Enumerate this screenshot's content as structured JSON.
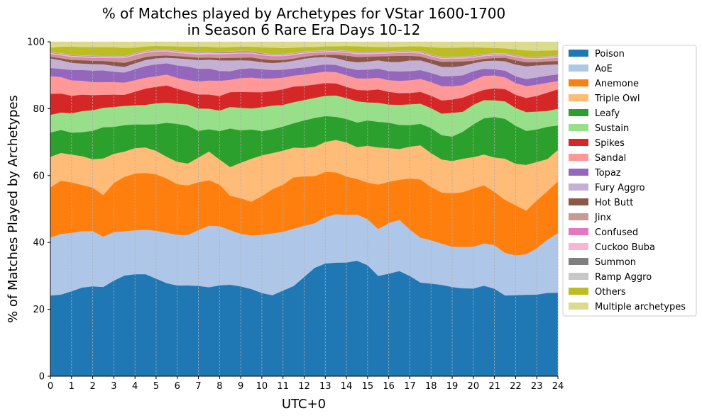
{
  "chart_data": {
    "type": "area",
    "stacked": true,
    "title_line1": "% of Matches played by Archetypes for VStar 1600-1700",
    "title_line2": "in Season 6 Rare Era Days 10-12",
    "xlabel": "UTC+0",
    "ylabel": "% of Matches Played by Archetypes",
    "xlim": [
      0,
      24
    ],
    "ylim": [
      0,
      100
    ],
    "xticks": [
      0,
      1,
      2,
      3,
      4,
      5,
      6,
      7,
      8,
      9,
      10,
      11,
      12,
      13,
      14,
      15,
      16,
      17,
      18,
      19,
      20,
      21,
      22,
      23,
      24
    ],
    "xtick_labels": [
      "0",
      "1",
      "2",
      "3",
      "4",
      "5",
      "6",
      "7",
      "8",
      "9",
      "10",
      "11",
      "12",
      "13",
      "14",
      "15",
      "16",
      "17",
      "18",
      "19",
      "20",
      "21",
      "22",
      "23",
      "24"
    ],
    "yticks": [
      0,
      20,
      40,
      60,
      80,
      100
    ],
    "ytick_labels": [
      "0",
      "20",
      "40",
      "60",
      "80",
      "100"
    ],
    "grid": "vertical-dashed",
    "legend_position": "right",
    "x": [
      0,
      0.5,
      1,
      1.5,
      2,
      2.5,
      3,
      3.5,
      4,
      4.5,
      5,
      5.5,
      6,
      6.5,
      7,
      7.5,
      8,
      8.5,
      9,
      9.5,
      10,
      10.5,
      11,
      11.5,
      12,
      12.5,
      13,
      13.5,
      14,
      14.5,
      15,
      15.5,
      16,
      16.5,
      17,
      17.5,
      18,
      18.5,
      19,
      19.5,
      20,
      20.5,
      21,
      21.5,
      22,
      22.5,
      23,
      23.5,
      24
    ],
    "series": [
      {
        "name": "Poison",
        "color": "#1f77b4",
        "values": [
          25.0,
          25.3,
          26.3,
          27.4,
          27.5,
          27.5,
          28.8,
          30.2,
          30.9,
          31.6,
          30.8,
          29.9,
          29.2,
          28.6,
          27.8,
          27.2,
          27.5,
          28.0,
          27.8,
          27.4,
          26.1,
          25.3,
          26.4,
          27.8,
          30.7,
          33.5,
          34.5,
          35.0,
          35.4,
          35.8,
          34.3,
          31.0,
          31.6,
          32.4,
          30.8,
          28.8,
          28.4,
          27.9,
          27.4,
          26.8,
          27.5,
          28.3,
          27.1,
          25.8,
          25.4,
          24.7,
          24.6,
          25.1,
          25.0
        ]
      },
      {
        "name": "AoE",
        "color": "#aec7e8",
        "values": [
          18.0,
          18.8,
          18.1,
          17.4,
          16.9,
          15.5,
          14.6,
          13.3,
          13.3,
          13.8,
          15.1,
          16.2,
          16.3,
          15.9,
          17.2,
          18.8,
          17.9,
          16.7,
          16.3,
          16.8,
          18.3,
          19.3,
          18.1,
          17.7,
          15.8,
          13.8,
          14.2,
          14.9,
          14.8,
          14.3,
          14.2,
          14.5,
          15.6,
          15.8,
          14.3,
          13.8,
          13.3,
          12.6,
          12.4,
          12.6,
          13.1,
          13.2,
          13.5,
          13.6,
          12.5,
          12.3,
          14.0,
          16.0,
          17.8
        ]
      },
      {
        "name": "Anemone",
        "color": "#ff7f0e",
        "values": [
          15.5,
          16.5,
          15.6,
          14.3,
          13.3,
          12.8,
          14.8,
          16.3,
          17.2,
          17.6,
          17.8,
          17.4,
          16.3,
          15.6,
          14.7,
          13.9,
          12.6,
          10.5,
          11.0,
          10.6,
          12.1,
          13.8,
          14.5,
          15.8,
          15.3,
          14.5,
          13.8,
          12.9,
          12.0,
          11.0,
          11.3,
          13.7,
          12.7,
          12.3,
          15.7,
          17.9,
          16.3,
          15.6,
          16.4,
          16.7,
          18.2,
          18.2,
          16.5,
          16.9,
          15.7,
          13.2,
          14.4,
          14.6,
          15.5
        ]
      },
      {
        "name": "Triple Owl",
        "color": "#ffbb78",
        "values": [
          9.5,
          8.6,
          8.6,
          8.9,
          8.7,
          11.3,
          8.8,
          7.6,
          7.7,
          7.9,
          7.4,
          7.0,
          7.2,
          6.9,
          7.6,
          8.8,
          7.6,
          8.8,
          11.0,
          13.5,
          12.8,
          11.3,
          10.5,
          9.2,
          8.8,
          9.1,
          9.2,
          10.0,
          10.6,
          9.9,
          11.4,
          11.5,
          10.4,
          9.5,
          9.8,
          10.5,
          10.4,
          10.1,
          9.9,
          10.2,
          9.9,
          9.6,
          10.7,
          13.2,
          13.0,
          13.9,
          11.6,
          9.7,
          9.4
        ]
      },
      {
        "name": "Leafy",
        "color": "#2ca02c",
        "values": [
          7.5,
          7.1,
          6.8,
          7.4,
          8.7,
          9.6,
          8.1,
          7.9,
          7.2,
          7.1,
          8.4,
          10.9,
          12.2,
          11.9,
          8.2,
          6.8,
          8.6,
          11.8,
          10.0,
          9.2,
          7.6,
          7.4,
          7.4,
          7.5,
          8.5,
          8.9,
          7.9,
          7.1,
          7.3,
          7.6,
          7.8,
          7.9,
          7.8,
          7.4,
          6.6,
          6.6,
          7.7,
          7.4,
          7.5,
          8.2,
          10.2,
          11.3,
          12.5,
          12.7,
          11.9,
          10.3,
          9.8,
          9.7,
          7.3
        ]
      },
      {
        "name": "Sustain",
        "color": "#98df8a",
        "values": [
          5.5,
          5.4,
          6.0,
          6.5,
          6.3,
          6.0,
          6.0,
          5.8,
          5.8,
          6.1,
          6.6,
          6.5,
          6.5,
          6.7,
          6.9,
          6.3,
          6.2,
          6.6,
          7.0,
          6.6,
          7.5,
          7.4,
          6.7,
          6.5,
          6.3,
          6.2,
          6.2,
          6.6,
          6.5,
          6.6,
          5.6,
          5.9,
          5.6,
          6.2,
          6.4,
          6.2,
          6.1,
          6.6,
          7.3,
          6.1,
          6.2,
          5.7,
          5.2,
          5.6,
          5.6,
          5.7,
          5.4,
          4.8,
          5.0
        ]
      },
      {
        "name": "Spikes",
        "color": "#d62728",
        "values": [
          6.5,
          5.9,
          5.4,
          5.1,
          4.6,
          4.0,
          3.7,
          3.3,
          4.1,
          5.0,
          5.2,
          5.5,
          4.8,
          4.0,
          4.3,
          4.3,
          4.4,
          4.5,
          4.9,
          5.1,
          4.7,
          4.5,
          4.8,
          4.8,
          4.4,
          4.1,
          3.9,
          3.7,
          3.5,
          3.5,
          3.7,
          4.1,
          3.9,
          3.6,
          3.5,
          3.6,
          3.8,
          4.0,
          4.1,
          4.3,
          3.5,
          3.2,
          3.7,
          3.9,
          4.1,
          4.3,
          4.7,
          5.5,
          5.8
        ]
      },
      {
        "name": "Sandal",
        "color": "#ff9896",
        "values": [
          5.5,
          5.1,
          4.8,
          4.3,
          4.0,
          3.9,
          3.8,
          3.7,
          3.5,
          3.4,
          3.4,
          3.5,
          3.5,
          3.7,
          4.0,
          4.3,
          4.6,
          3.8,
          4.3,
          4.6,
          4.3,
          4.0,
          3.6,
          3.4,
          3.5,
          3.6,
          3.5,
          3.5,
          3.6,
          3.6,
          3.7,
          3.6,
          3.6,
          3.8,
          3.9,
          4.0,
          4.2,
          4.4,
          4.1,
          3.8,
          4.2,
          4.4,
          4.0,
          3.8,
          3.7,
          3.6,
          3.4,
          3.0,
          2.5
        ]
      },
      {
        "name": "Topaz",
        "color": "#9467bd",
        "values": [
          2.5,
          2.5,
          3.2,
          3.3,
          3.5,
          3.6,
          3.1,
          3.0,
          3.3,
          3.6,
          3.7,
          3.6,
          4.0,
          4.2,
          3.9,
          3.6,
          3.0,
          2.6,
          2.8,
          2.9,
          2.9,
          2.6,
          2.4,
          2.2,
          2.2,
          2.2,
          2.2,
          2.2,
          2.3,
          2.6,
          2.7,
          2.8,
          2.8,
          2.9,
          2.8,
          2.7,
          2.8,
          3.0,
          3.1,
          3.0,
          2.8,
          2.2,
          1.9,
          2.1,
          2.1,
          2.1,
          2.2,
          2.1,
          2.0
        ]
      },
      {
        "name": "Fury Aggro",
        "color": "#c5b0d5",
        "values": [
          3.0,
          2.7,
          2.2,
          2.0,
          2.0,
          1.9,
          1.8,
          1.7,
          1.8,
          1.9,
          1.9,
          1.8,
          2.3,
          2.4,
          2.7,
          2.8,
          3.2,
          3.3,
          2.7,
          2.4,
          2.2,
          2.2,
          2.3,
          2.4,
          2.7,
          2.6,
          2.3,
          2.1,
          2.2,
          2.4,
          2.5,
          2.6,
          2.8,
          2.9,
          3.3,
          3.0,
          2.9,
          2.9,
          2.8,
          2.9,
          2.5,
          2.4,
          2.7,
          3.0,
          3.7,
          3.9,
          3.6,
          3.3,
          3.0
        ]
      },
      {
        "name": "Hot Butt",
        "color": "#8c564b",
        "values": [
          0.5,
          0.6,
          0.9,
          1.0,
          1.0,
          1.0,
          1.2,
          1.2,
          1.0,
          0.9,
          0.8,
          0.7,
          0.7,
          0.7,
          0.7,
          0.6,
          0.7,
          0.8,
          0.8,
          1.0,
          1.0,
          0.9,
          0.7,
          0.6,
          0.6,
          0.6,
          0.6,
          1.0,
          1.6,
          1.6,
          1.5,
          1.2,
          1.8,
          1.9,
          1.4,
          1.2,
          1.2,
          1.5,
          1.6,
          1.3,
          0.8,
          0.7,
          0.8,
          1.1,
          1.3,
          1.2,
          1.0,
          1.0,
          1.0
        ]
      },
      {
        "name": "Jinx",
        "color": "#c49c94",
        "values": [
          0.5,
          0.6,
          0.6,
          0.6,
          0.6,
          0.6,
          0.8,
          1.1,
          1.1,
          1.0,
          1.0,
          1.0,
          0.7,
          0.6,
          0.6,
          0.7,
          0.8,
          0.9,
          1.0,
          0.8,
          0.7,
          0.6,
          0.6,
          0.6,
          0.6,
          0.5,
          0.5,
          0.5,
          0.6,
          0.6,
          0.5,
          0.5,
          0.5,
          0.6,
          0.6,
          0.6,
          0.6,
          0.6,
          0.6,
          0.6,
          0.6,
          0.5,
          0.5,
          0.5,
          0.6,
          0.6,
          0.6,
          0.6,
          0.6
        ]
      },
      {
        "name": "Confused",
        "color": "#e377c2",
        "values": [
          0.3,
          0.3,
          0.3,
          0.3,
          0.3,
          0.3,
          0.3,
          0.3,
          0.3,
          0.3,
          0.3,
          0.3,
          0.3,
          0.3,
          0.3,
          0.3,
          0.3,
          0.3,
          0.3,
          0.4,
          0.5,
          0.6,
          0.6,
          0.5,
          0.4,
          0.3,
          0.3,
          0.3,
          0.3,
          0.3,
          0.3,
          0.3,
          0.3,
          0.3,
          0.3,
          0.3,
          0.3,
          0.3,
          0.3,
          0.3,
          0.3,
          0.3,
          0.3,
          0.3,
          0.4,
          0.4,
          0.3,
          0.3,
          0.3
        ]
      },
      {
        "name": "Cuckoo Buba",
        "color": "#f7b6d2",
        "values": [
          0.4,
          0.4,
          0.4,
          0.4,
          0.4,
          0.4,
          0.4,
          0.4,
          0.4,
          0.4,
          0.4,
          0.4,
          0.5,
          0.5,
          0.5,
          0.5,
          0.4,
          0.4,
          0.4,
          0.4,
          0.4,
          0.4,
          0.4,
          0.4,
          0.4,
          0.4,
          0.4,
          0.4,
          0.4,
          0.4,
          0.4,
          0.4,
          0.4,
          0.4,
          0.4,
          0.4,
          0.4,
          0.4,
          0.4,
          0.4,
          0.4,
          0.4,
          0.4,
          0.4,
          0.4,
          0.4,
          0.4,
          0.4,
          0.4
        ]
      },
      {
        "name": "Summon",
        "color": "#7f7f7f",
        "values": [
          0.1,
          0.1,
          0.1,
          0.1,
          0.1,
          0.1,
          0.1,
          0.1,
          0.1,
          0.1,
          0.1,
          0.1,
          0.1,
          0.1,
          0.1,
          0.1,
          0.2,
          0.3,
          0.3,
          0.3,
          0.2,
          0.1,
          0.1,
          0.1,
          0.1,
          0.1,
          0.1,
          0.1,
          0.1,
          0.1,
          0.1,
          0.1,
          0.1,
          0.1,
          0.1,
          0.1,
          0.1,
          0.1,
          0.1,
          0.1,
          0.1,
          0.1,
          0.1,
          0.1,
          0.1,
          0.1,
          0.1,
          0.1,
          0.1
        ]
      },
      {
        "name": "Ramp Aggro",
        "color": "#c7c7c7",
        "values": [
          0.2,
          0.2,
          0.2,
          0.2,
          0.2,
          0.2,
          0.2,
          0.2,
          0.2,
          0.2,
          0.2,
          0.2,
          0.2,
          0.2,
          0.2,
          0.2,
          0.2,
          0.2,
          0.2,
          0.2,
          0.2,
          0.2,
          0.2,
          0.2,
          0.2,
          0.2,
          0.2,
          0.2,
          0.2,
          0.2,
          0.2,
          0.2,
          0.2,
          0.2,
          0.2,
          0.2,
          0.2,
          0.2,
          0.2,
          0.2,
          0.2,
          0.2,
          0.2,
          0.2,
          0.2,
          0.2,
          0.2,
          0.2,
          0.2
        ]
      },
      {
        "name": "Others",
        "color": "#bcbd22",
        "values": [
          1.3,
          2.0,
          2.5,
          2.5,
          2.6,
          2.7,
          2.6,
          2.4,
          1.7,
          1.3,
          1.1,
          1.0,
          1.3,
          1.5,
          1.7,
          1.5,
          1.3,
          1.2,
          1.2,
          1.3,
          1.7,
          2.0,
          1.8,
          1.6,
          1.3,
          1.1,
          1.1,
          1.1,
          1.4,
          1.7,
          1.6,
          1.4,
          1.3,
          1.2,
          1.3,
          1.5,
          2.2,
          2.7,
          2.7,
          2.7,
          2.6,
          2.0,
          1.6,
          1.5,
          1.7,
          1.9,
          1.8,
          1.7,
          1.6
        ]
      },
      {
        "name": "Multiple archetypes",
        "color": "#dbdb8d",
        "values": [
          1.8,
          1.5,
          1.5,
          1.6,
          1.6,
          1.6,
          1.6,
          1.8,
          1.7,
          1.4,
          1.3,
          1.4,
          1.5,
          1.5,
          1.5,
          1.5,
          1.7,
          1.6,
          1.5,
          1.5,
          1.7,
          1.8,
          1.9,
          1.8,
          1.6,
          1.6,
          1.4,
          1.4,
          1.3,
          1.4,
          1.5,
          1.6,
          1.6,
          1.5,
          1.4,
          1.4,
          1.6,
          1.8,
          1.8,
          1.7,
          1.7,
          1.8,
          1.9,
          2.1,
          2.4,
          2.6,
          2.7,
          2.6,
          2.5
        ]
      }
    ]
  }
}
